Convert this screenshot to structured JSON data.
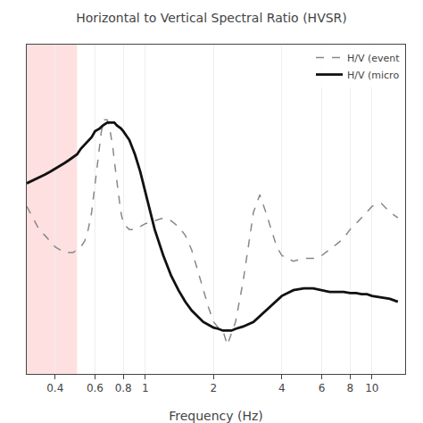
{
  "chart_data": {
    "type": "line",
    "title": "Horizontal to Vertical Spectral Ratio (HVSR)",
    "xlabel": "Frequency (Hz)",
    "log": "x",
    "xlim": [
      0.3,
      14
    ],
    "ylim": [
      0.3,
      6.0
    ],
    "xticks": [
      0.4,
      0.6,
      0.8,
      1,
      2,
      4,
      6,
      8,
      10
    ],
    "yticks": [],
    "tick_labels": "x",
    "grid": true,
    "legend": "upper right",
    "shaded": {
      "x": [
        0.3,
        0.5
      ],
      "color": "#ffcccc"
    },
    "series": [
      {
        "name": "H/V (event",
        "color": "#888888",
        "line_style": "dashed",
        "x": [
          0.3,
          0.32,
          0.34,
          0.36,
          0.38,
          0.4,
          0.42,
          0.44,
          0.46,
          0.48,
          0.5,
          0.52,
          0.54,
          0.56,
          0.58,
          0.6,
          0.62,
          0.64,
          0.66,
          0.68,
          0.7,
          0.72,
          0.74,
          0.76,
          0.78,
          0.8,
          0.85,
          0.9,
          0.95,
          1.0,
          1.1,
          1.2,
          1.3,
          1.4,
          1.5,
          1.6,
          1.7,
          1.8,
          1.9,
          2.0,
          2.1,
          2.2,
          2.3,
          2.5,
          2.7,
          3.0,
          3.2,
          3.4,
          3.6,
          3.8,
          4.0,
          4.5,
          5.0,
          5.5,
          6.0,
          6.5,
          7.0,
          7.5,
          8.0,
          8.5,
          9.0,
          9.5,
          10.0,
          11.0,
          12.0,
          13.0
        ],
        "values": [
          3.2,
          3.0,
          2.8,
          2.7,
          2.6,
          2.5,
          2.45,
          2.4,
          2.4,
          2.4,
          2.45,
          2.5,
          2.6,
          2.8,
          3.1,
          3.6,
          4.1,
          4.5,
          4.7,
          4.7,
          4.5,
          4.2,
          3.8,
          3.4,
          3.1,
          2.9,
          2.8,
          2.8,
          2.85,
          2.9,
          2.95,
          3.0,
          2.95,
          2.85,
          2.7,
          2.45,
          2.1,
          1.75,
          1.45,
          1.2,
          1.1,
          1.05,
          0.8,
          1.2,
          1.9,
          3.1,
          3.4,
          3.1,
          2.8,
          2.5,
          2.35,
          2.25,
          2.3,
          2.3,
          2.35,
          2.45,
          2.55,
          2.65,
          2.8,
          2.9,
          3.0,
          3.1,
          3.2,
          3.25,
          3.1,
          3.0
        ]
      },
      {
        "name": "H/V (micro",
        "color": "#111111",
        "line_style": "solid",
        "x": [
          0.3,
          0.32,
          0.34,
          0.36,
          0.38,
          0.4,
          0.42,
          0.44,
          0.46,
          0.48,
          0.5,
          0.52,
          0.55,
          0.58,
          0.6,
          0.63,
          0.65,
          0.68,
          0.7,
          0.73,
          0.75,
          0.78,
          0.8,
          0.85,
          0.9,
          0.95,
          1.0,
          1.1,
          1.2,
          1.3,
          1.4,
          1.5,
          1.6,
          1.7,
          1.8,
          1.9,
          2.0,
          2.1,
          2.2,
          2.3,
          2.4,
          2.5,
          2.7,
          3.0,
          3.3,
          3.6,
          4.0,
          4.5,
          5.0,
          5.5,
          6.0,
          6.5,
          7.0,
          7.5,
          8.0,
          8.5,
          9.0,
          9.5,
          10.0,
          11.0,
          12.0,
          13.0
        ],
        "values": [
          3.6,
          3.65,
          3.7,
          3.75,
          3.8,
          3.85,
          3.9,
          3.95,
          4.0,
          4.05,
          4.1,
          4.2,
          4.3,
          4.4,
          4.5,
          4.55,
          4.6,
          4.65,
          4.65,
          4.65,
          4.6,
          4.55,
          4.5,
          4.35,
          4.1,
          3.8,
          3.45,
          2.8,
          2.35,
          2.0,
          1.75,
          1.55,
          1.4,
          1.3,
          1.2,
          1.15,
          1.1,
          1.08,
          1.05,
          1.05,
          1.05,
          1.08,
          1.12,
          1.2,
          1.35,
          1.5,
          1.65,
          1.75,
          1.78,
          1.78,
          1.75,
          1.72,
          1.72,
          1.72,
          1.7,
          1.7,
          1.68,
          1.68,
          1.65,
          1.62,
          1.6,
          1.55
        ]
      }
    ]
  }
}
